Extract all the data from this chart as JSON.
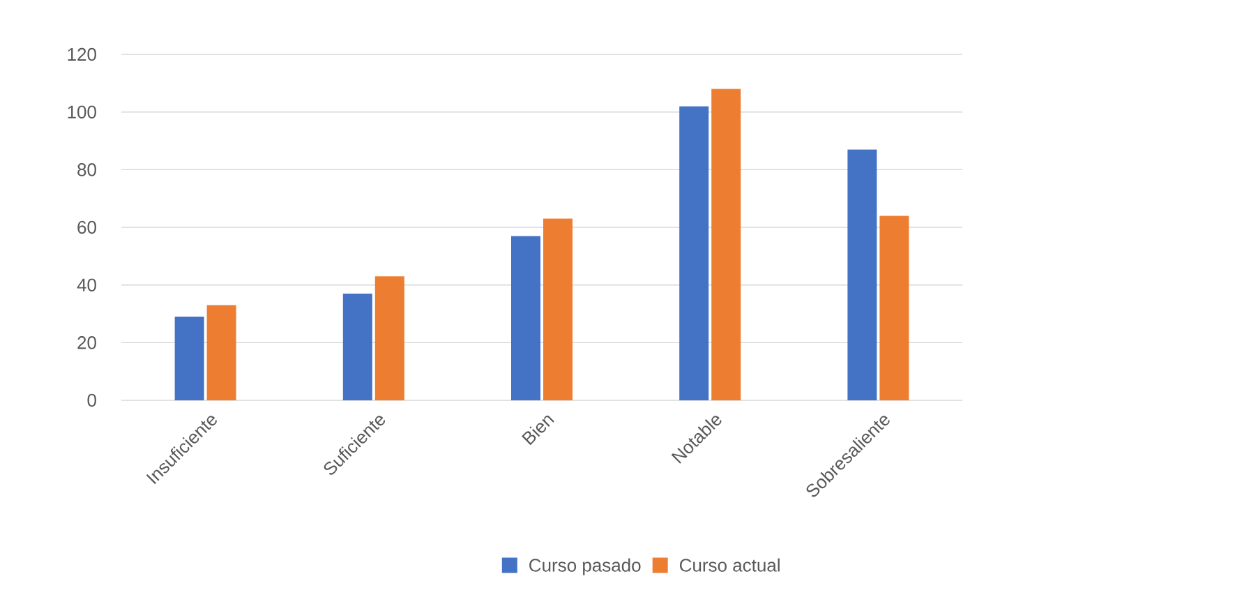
{
  "chart_data": {
    "type": "bar",
    "categories": [
      "Insuficiente",
      "Suficiente",
      "Bien",
      "Notable",
      "Sobresaliente"
    ],
    "series": [
      {
        "name": "Curso pasado",
        "color": "#4472c4",
        "values": [
          29,
          37,
          57,
          102,
          87
        ]
      },
      {
        "name": "Curso actual",
        "color": "#ed7d31",
        "values": [
          33,
          43,
          63,
          108,
          64
        ]
      }
    ],
    "ylim": [
      0,
      120
    ],
    "yticks": [
      0,
      20,
      40,
      60,
      80,
      100,
      120
    ],
    "grid": "y",
    "legend": "bottom"
  }
}
